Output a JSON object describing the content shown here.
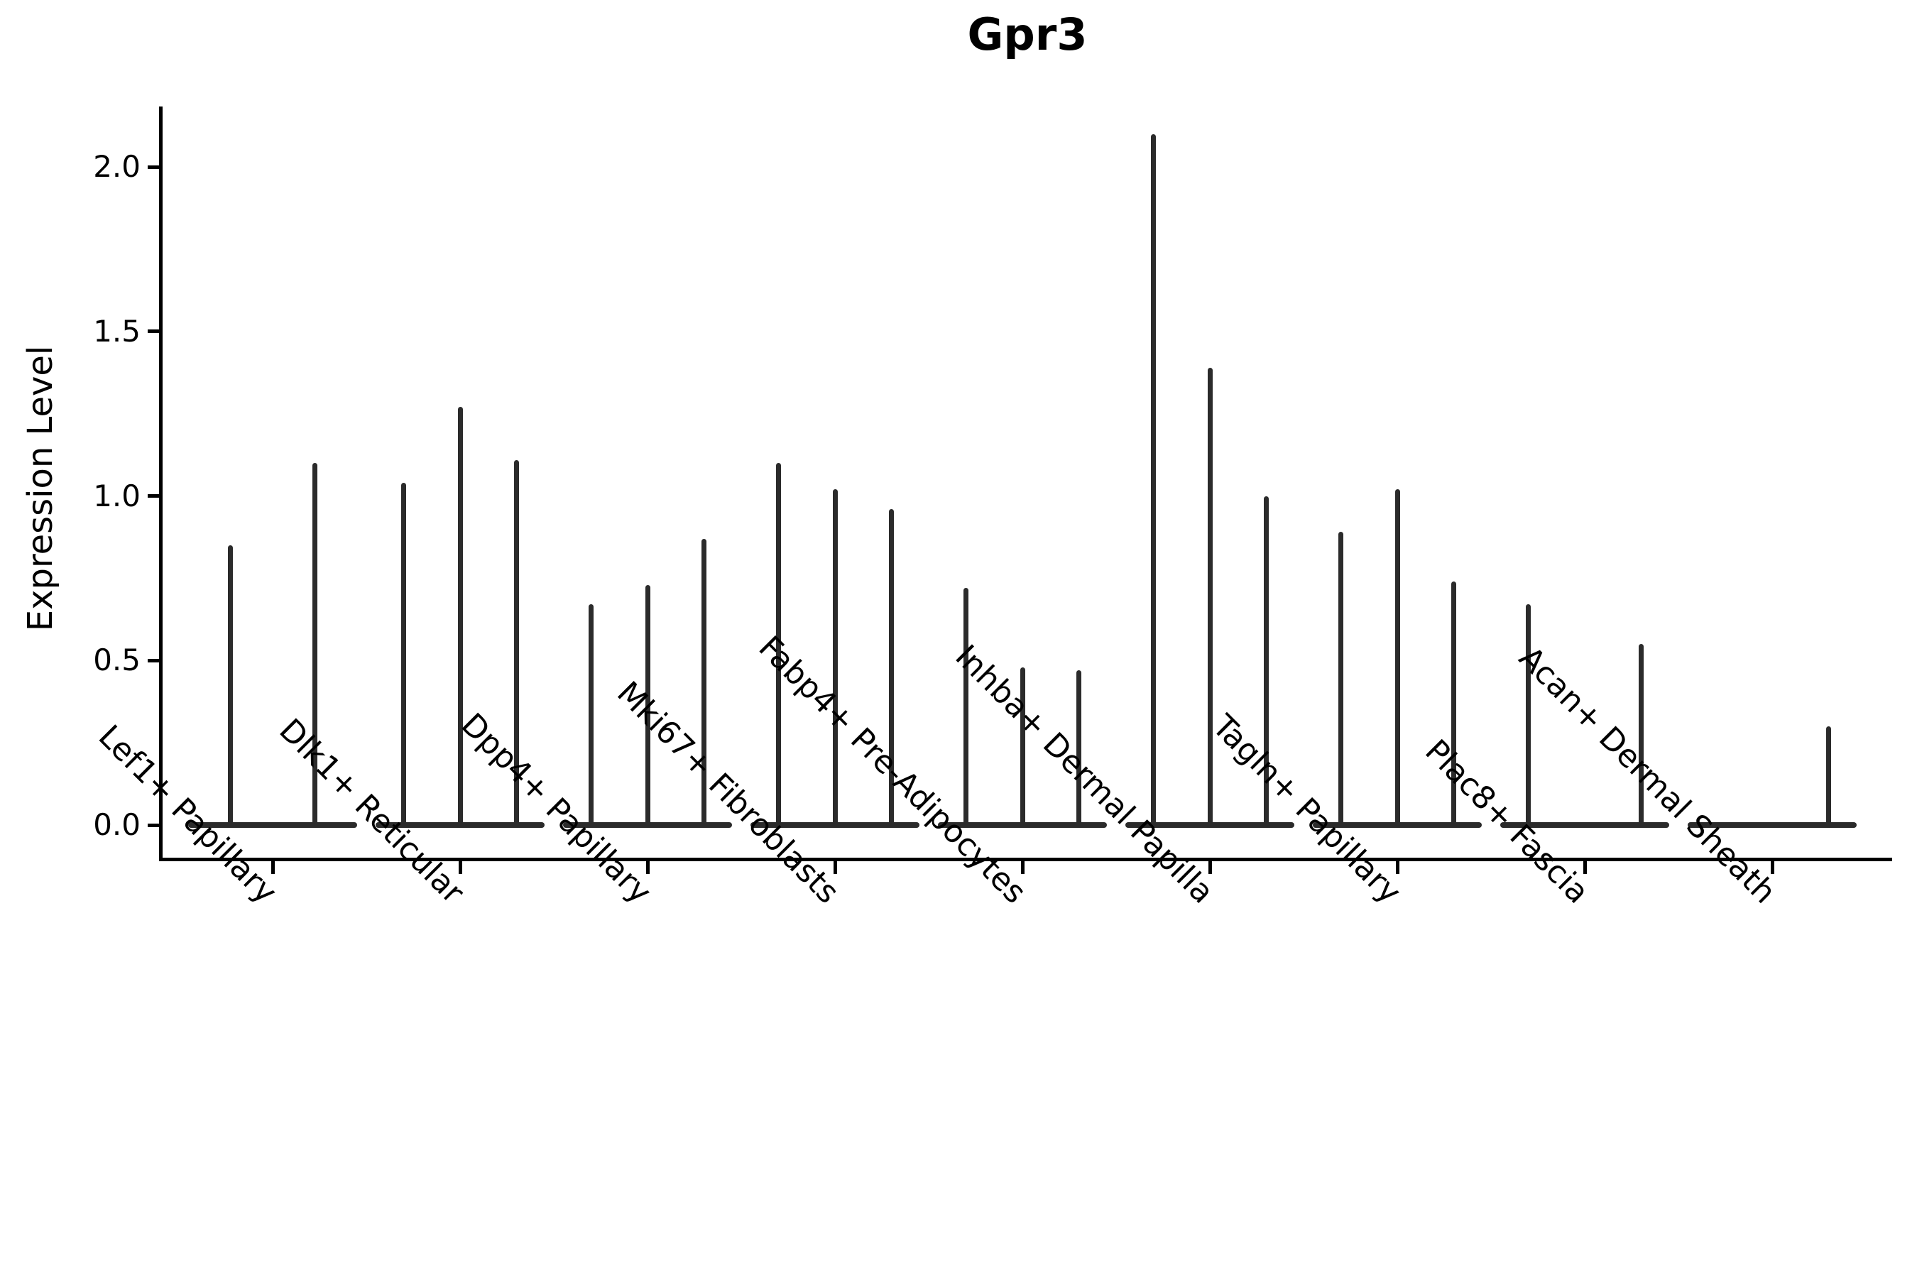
{
  "title": "Gpr3",
  "chart_data": {
    "type": "violin",
    "title": "Gpr3",
    "ylabel": "Expression Level",
    "xlabel": "",
    "legend": "none",
    "grid": false,
    "ylim": [
      -0.1,
      2.18
    ],
    "yticks": [
      {
        "value": 0.0,
        "label": "0.0"
      },
      {
        "value": 0.5,
        "label": "0.5"
      },
      {
        "value": 1.0,
        "label": "1.0"
      },
      {
        "value": 1.5,
        "label": "1.5"
      },
      {
        "value": 2.0,
        "label": "2.0"
      }
    ],
    "baseline_value": 0.0,
    "categories": [
      "Lef1+ Papillary",
      "Dlk1+ Reticular",
      "Dpp4+ Papillary",
      "Mki67+ Fibroblasts",
      "Fabp4+ Pre-Adipocytes",
      "Inhba+ Dermal Papilla",
      "Tagln+ Papillary",
      "Plac8+ Fascia",
      "Acan+ Dermal Sheath"
    ],
    "groups": [
      {
        "category": "Lef1+ Papillary",
        "violin_peaks": [
          0.85,
          1.1
        ]
      },
      {
        "category": "Dlk1+ Reticular",
        "violin_peaks": [
          1.04,
          1.27,
          1.11
        ]
      },
      {
        "category": "Dpp4+ Papillary",
        "violin_peaks": [
          0.67,
          0.73,
          0.87
        ]
      },
      {
        "category": "Mki67+ Fibroblasts",
        "violin_peaks": [
          1.1,
          1.02,
          0.96
        ]
      },
      {
        "category": "Fabp4+ Pre-Adipocytes",
        "violin_peaks": [
          0.72,
          0.48,
          0.47
        ]
      },
      {
        "category": "Inhba+ Dermal Papilla",
        "violin_peaks": [
          2.1,
          1.39,
          1.0
        ]
      },
      {
        "category": "Tagln+ Papillary",
        "violin_peaks": [
          0.89,
          1.02,
          0.74
        ]
      },
      {
        "category": "Plac8+ Fascia",
        "violin_peaks": [
          0.67,
          null,
          0.55
        ]
      },
      {
        "category": "Acan+ Dermal Sheath",
        "violin_peaks": [
          null,
          null,
          0.3
        ]
      }
    ],
    "colors": {
      "violin": "#2b2b2b",
      "axis": "#000000",
      "text": "#000000",
      "background": "#ffffff"
    }
  }
}
